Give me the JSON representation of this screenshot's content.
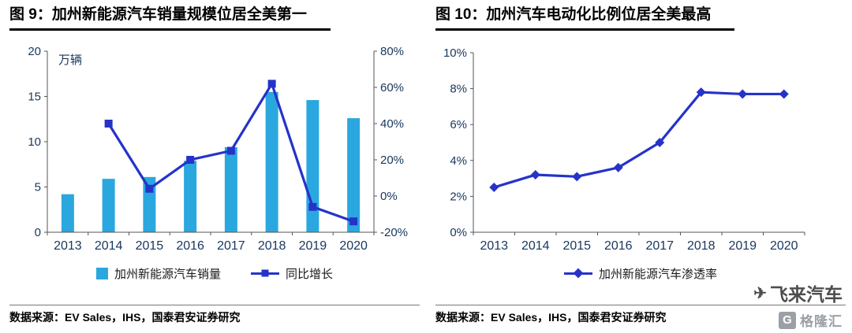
{
  "panels": [
    {
      "title": "图 9：加州新能源汽车销量规模位居全美第一",
      "source": "数据来源：EV Sales，IHS，国泰君安证券研究"
    },
    {
      "title": "图 10：加州汽车电动化比例位居全美最高",
      "source": "数据来源：EV Sales，IHS，国泰君安证券研究"
    }
  ],
  "chart_data": [
    {
      "type": "bar",
      "subtype": "bar-line-combo-dual-axis",
      "title": "加州新能源汽车销量规模位居全美第一",
      "categories": [
        "2013",
        "2014",
        "2015",
        "2016",
        "2017",
        "2018",
        "2019",
        "2020"
      ],
      "series": [
        {
          "name": "加州新能源汽车销量",
          "type": "bar",
          "axis": "left",
          "values": [
            4.2,
            5.9,
            6.1,
            7.9,
            9.4,
            15.5,
            14.6,
            12.6
          ]
        },
        {
          "name": "同比增长",
          "type": "line",
          "axis": "right",
          "marker": "square",
          "values": [
            null,
            40,
            4,
            20,
            25,
            62,
            -6,
            -14
          ]
        }
      ],
      "left_axis": {
        "label": "万辆",
        "min": 0,
        "max": 20,
        "tick_values": [
          0,
          5,
          10,
          15,
          20
        ],
        "tick_labels": [
          "0",
          "5",
          "10",
          "15",
          "20"
        ]
      },
      "right_axis": {
        "min": -20,
        "max": 80,
        "tick_values": [
          -20,
          0,
          20,
          40,
          60,
          80
        ],
        "tick_labels": [
          "-20%",
          "0%",
          "20%",
          "40%",
          "60%",
          "80%"
        ]
      },
      "grid": false,
      "legend_position": "bottom"
    },
    {
      "type": "line",
      "title": "加州汽车电动化比例位居全美最高",
      "categories": [
        "2013",
        "2014",
        "2015",
        "2016",
        "2017",
        "2018",
        "2019",
        "2020"
      ],
      "series": [
        {
          "name": "加州新能源汽车渗透率",
          "type": "line",
          "marker": "diamond",
          "values": [
            2.5,
            3.2,
            3.1,
            3.6,
            5.0,
            7.8,
            7.7,
            7.7
          ]
        }
      ],
      "y_axis": {
        "min": 0,
        "max": 10,
        "tick_values": [
          0,
          2,
          4,
          6,
          8,
          10
        ],
        "tick_labels": [
          "0%",
          "2%",
          "4%",
          "6%",
          "8%",
          "10%"
        ]
      },
      "grid": false,
      "legend_position": "bottom"
    }
  ],
  "watermark": {
    "brand": "飞来汽车",
    "plane_glyph": "✈",
    "logo_letter": "G",
    "logo_text": "格隆汇"
  },
  "colors": {
    "bar": "#2BA7DF",
    "line": "#2533C9",
    "tick": "#17375E",
    "axis": "#555555",
    "title": "#000000",
    "watermark": "#9aa0a6"
  }
}
